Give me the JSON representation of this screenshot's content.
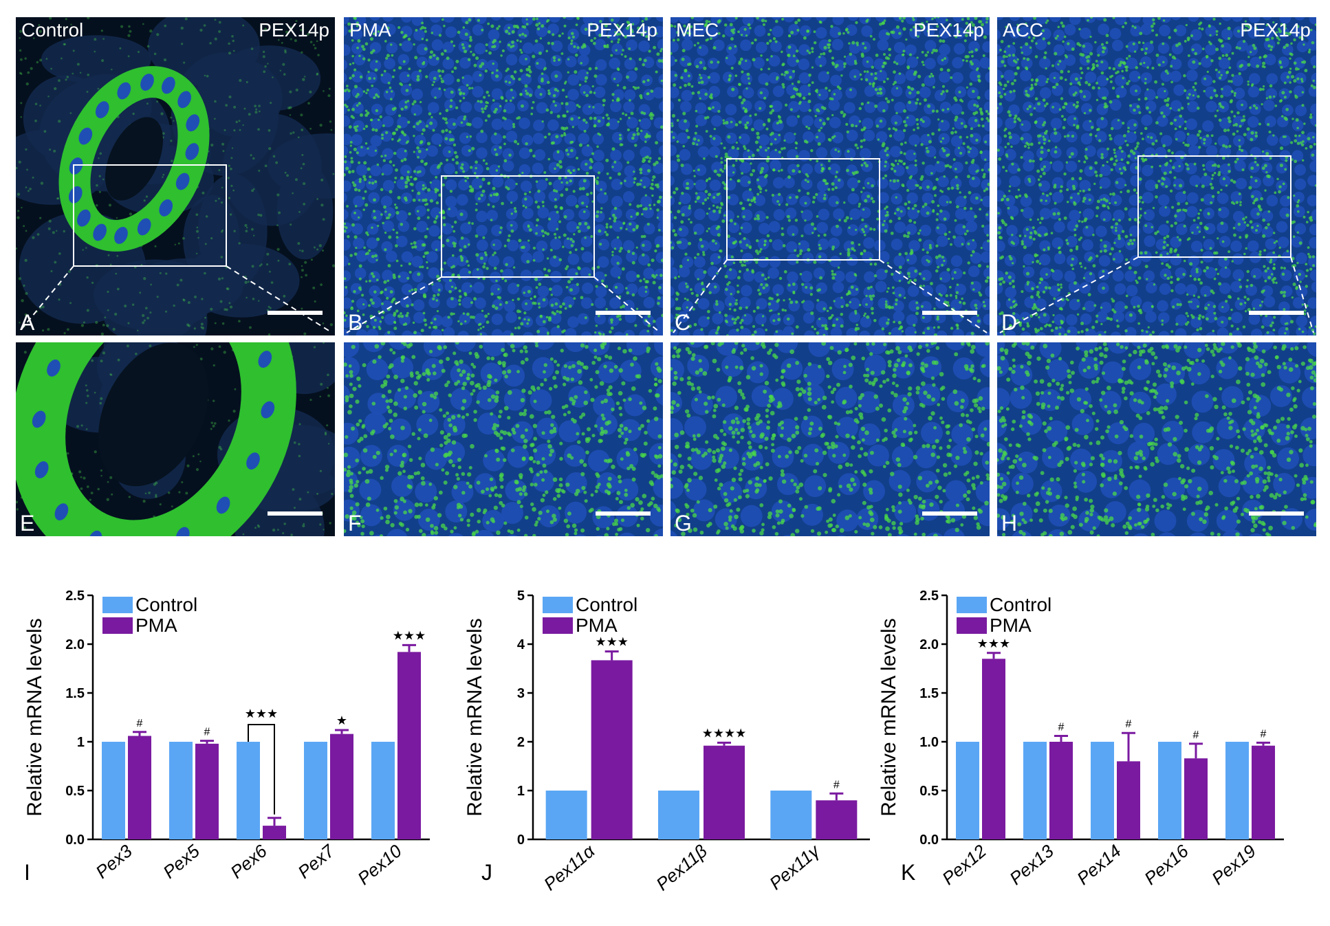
{
  "micrographs": [
    {
      "id": "A",
      "letter": "A",
      "group": "Control",
      "stain": "PEX14p",
      "kind": "control-overview",
      "inset": true
    },
    {
      "id": "B",
      "letter": "B",
      "group": "PMA",
      "stain": "PEX14p",
      "kind": "tumor-overview",
      "inset": true
    },
    {
      "id": "C",
      "letter": "C",
      "group": "MEC",
      "stain": "PEX14p",
      "kind": "tumor-overview",
      "inset": true
    },
    {
      "id": "D",
      "letter": "D",
      "group": "ACC",
      "stain": "PEX14p",
      "kind": "tumor-overview",
      "inset": true
    },
    {
      "id": "E",
      "letter": "E",
      "group": "",
      "stain": "",
      "kind": "control-zoom",
      "inset": false
    },
    {
      "id": "F",
      "letter": "F",
      "group": "",
      "stain": "",
      "kind": "tumor-zoom",
      "inset": false
    },
    {
      "id": "G",
      "letter": "G",
      "group": "",
      "stain": "",
      "kind": "tumor-zoom",
      "inset": false
    },
    {
      "id": "H",
      "letter": "H",
      "group": "",
      "stain": "",
      "kind": "tumor-zoom",
      "inset": false
    }
  ],
  "colors": {
    "control": "#5aa6f5",
    "pma": "#7a1aa0",
    "nucleus": "#1f4fb5",
    "peroxisome": "#4ad84a",
    "background": "#05101f"
  },
  "chart_data": [
    {
      "panel": "I",
      "type": "bar",
      "ylabel": "Relative mRNA levels",
      "ylim": [
        0,
        2.5
      ],
      "yticks": [
        "0.0",
        "0.5",
        "1",
        "1.5",
        "2.0",
        "2.5"
      ],
      "ytick_values": [
        0,
        0.5,
        1,
        1.5,
        2,
        2.5
      ],
      "categories": [
        "Pex3",
        "Pex5",
        "Pex6",
        "Pex7",
        "Pex10"
      ],
      "series": [
        {
          "name": "Control",
          "values": [
            1.0,
            1.0,
            1.0,
            1.0,
            1.0
          ]
        },
        {
          "name": "PMA",
          "values": [
            1.06,
            0.98,
            0.14,
            1.08,
            1.92
          ],
          "errors": [
            0.04,
            0.03,
            0.08,
            0.04,
            0.07
          ]
        }
      ],
      "annotations": [
        "#",
        "#",
        "★★★",
        "★",
        "★★★"
      ],
      "bracket_category": 2,
      "legend": "top-left"
    },
    {
      "panel": "J",
      "type": "bar",
      "ylabel": "Relative mRNA levels",
      "ylim": [
        0,
        5
      ],
      "yticks": [
        "0",
        "1",
        "2",
        "3",
        "4",
        "5"
      ],
      "ytick_values": [
        0,
        1,
        2,
        3,
        4,
        5
      ],
      "categories": [
        "Pex11α",
        "Pex11β",
        "Pex11γ"
      ],
      "series": [
        {
          "name": "Control",
          "values": [
            1.0,
            1.0,
            1.0
          ]
        },
        {
          "name": "PMA",
          "values": [
            3.67,
            1.92,
            0.8
          ],
          "errors": [
            0.18,
            0.06,
            0.14
          ]
        }
      ],
      "annotations": [
        "★★★",
        "★★★★",
        "#"
      ],
      "legend": "top-left"
    },
    {
      "panel": "K",
      "type": "bar",
      "ylabel": "Relative mRNA levels",
      "ylim": [
        0,
        2.5
      ],
      "yticks": [
        "0.0",
        "0.5",
        "1.0",
        "1.5",
        "2.0",
        "2.5"
      ],
      "ytick_values": [
        0,
        0.5,
        1,
        1.5,
        2,
        2.5
      ],
      "categories": [
        "Pex12",
        "Pex13",
        "Pex14",
        "Pex16",
        "Pex19"
      ],
      "series": [
        {
          "name": "Control",
          "values": [
            1.0,
            1.0,
            1.0,
            1.0,
            1.0
          ]
        },
        {
          "name": "PMA",
          "values": [
            1.85,
            1.0,
            0.8,
            0.83,
            0.96
          ],
          "errors": [
            0.06,
            0.06,
            0.29,
            0.15,
            0.03
          ]
        }
      ],
      "annotations": [
        "★★★",
        "#",
        "#",
        "#",
        "#"
      ],
      "legend": "top-left"
    }
  ]
}
